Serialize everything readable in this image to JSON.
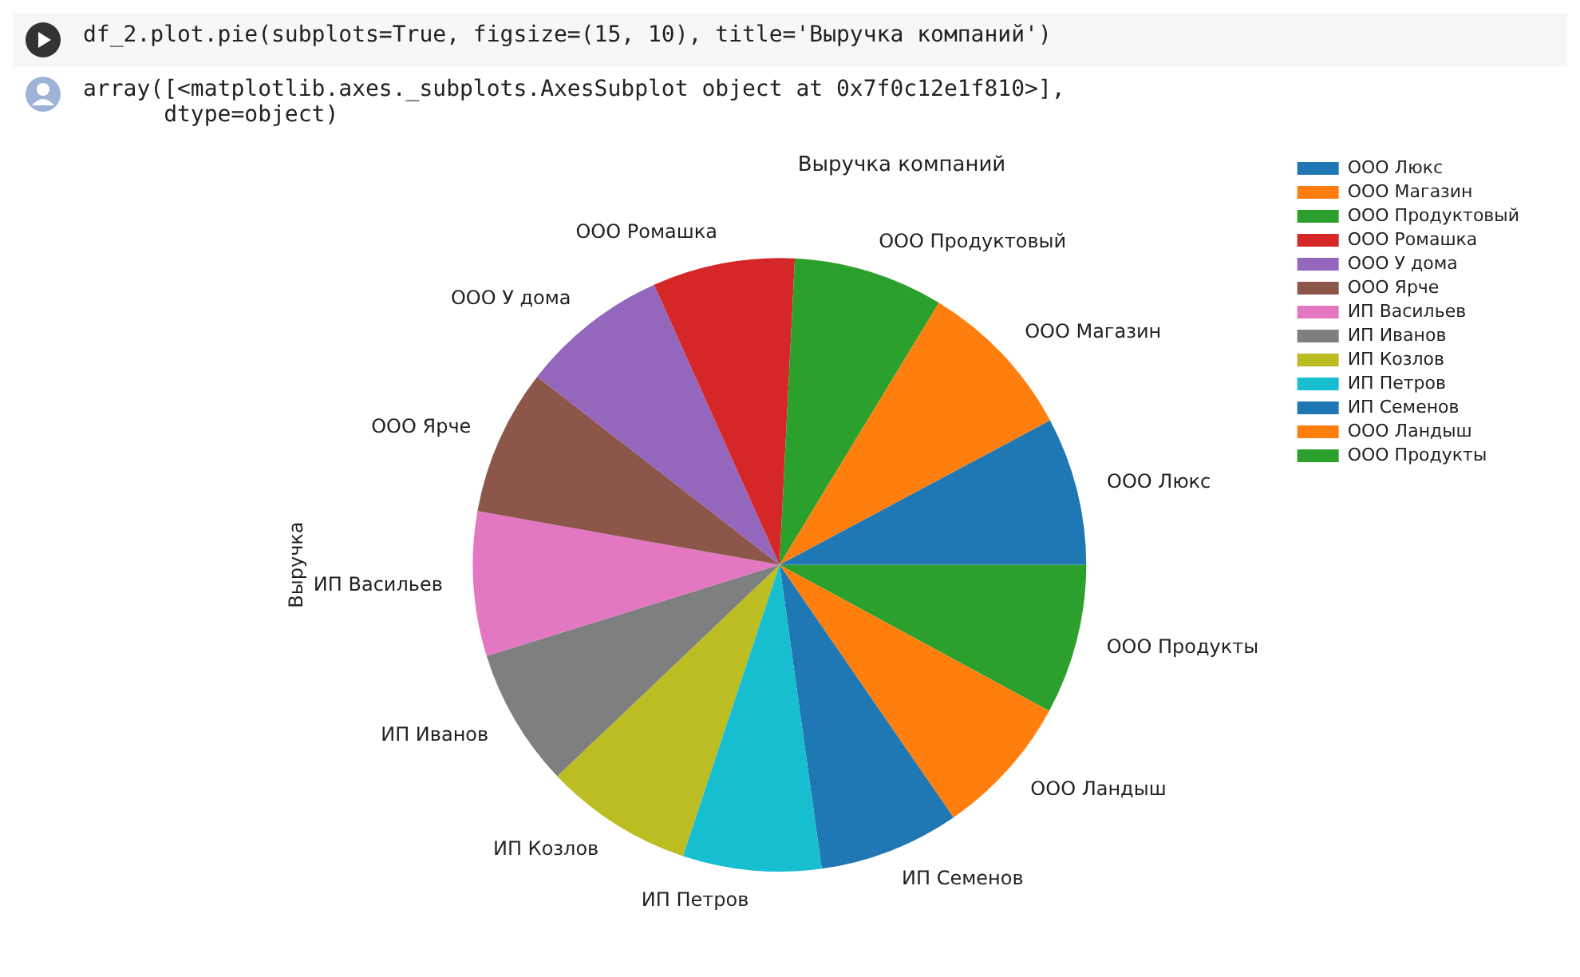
{
  "chart_data": {
    "type": "pie",
    "title": "Выручка компаний",
    "ylabel": "Выручка",
    "categories": [
      "ООО Люкс",
      "ООО Магазин",
      "ООО Продуктовый",
      "ООО Ромашка",
      "ООО У дома",
      "ООО Ярче",
      "ИП Васильев",
      "ИП Иванов",
      "ИП Козлов",
      "ИП Петров",
      "ИП Семенов",
      "ООО Ландыш",
      "ООО Продукты"
    ],
    "values": [
      7.8,
      8.5,
      7.9,
      7.5,
      7.8,
      7.7,
      7.6,
      7.3,
      7.8,
      7.3,
      7.4,
      7.5,
      7.9
    ],
    "colors": [
      "#1f77b4",
      "#ff7f0e",
      "#2ca02c",
      "#d62728",
      "#9467bd",
      "#8c564b",
      "#e377c2",
      "#7f7f7f",
      "#bcbd22",
      "#17becf",
      "#1f77b4",
      "#ff7f0e",
      "#2ca02c"
    ],
    "legend": "top right",
    "annotations": [
      "df_2.plot.pie(subplots=True, figsize=(15, 10), title='Выручка компаний')",
      "array([<matplotlib.axes._subplots.AxesSubplot object at 0x7f0c12e1f810>],\n      dtype=object)"
    ]
  }
}
